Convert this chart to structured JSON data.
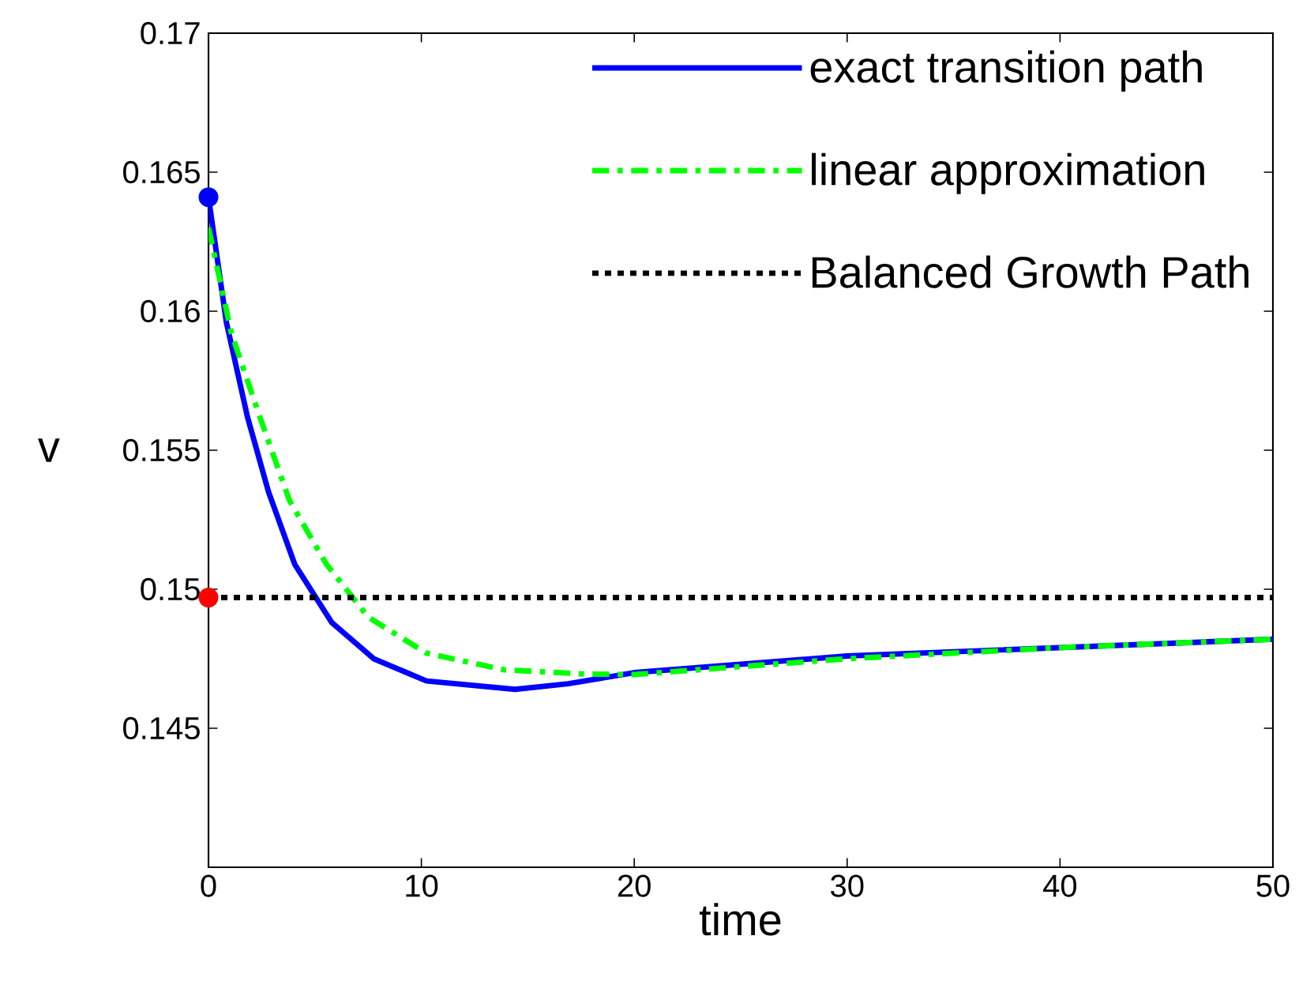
{
  "chart_data": {
    "type": "line",
    "xlabel": "time",
    "ylabel": "v",
    "xlim": [
      0,
      50
    ],
    "ylim": [
      0.14,
      0.17
    ],
    "xticks": [
      0,
      10,
      20,
      30,
      40,
      50
    ],
    "yticks": [
      0.145,
      0.15,
      0.155,
      0.16,
      0.165,
      0.17
    ],
    "grid": false,
    "legend": "top right",
    "series": [
      {
        "name": "exact transition path",
        "color": "#0000ff",
        "line_style": "solid",
        "x": [
          0,
          0.84,
          1.83,
          2.82,
          4.05,
          5.79,
          7.76,
          10.24,
          14.4,
          16.9,
          20,
          30,
          40,
          50
        ],
        "values": [
          0.1641,
          0.1596,
          0.1562,
          0.1535,
          0.1509,
          0.1488,
          0.1475,
          0.1467,
          0.1464,
          0.1466,
          0.147,
          0.1476,
          0.1479,
          0.1482
        ]
      },
      {
        "name": "linear approximation",
        "color": "#00ff00",
        "line_style": "dashdot",
        "x": [
          0,
          1.08,
          2.32,
          3.8,
          5.54,
          7.5,
          10.24,
          13.9,
          17.66,
          20,
          30,
          40,
          50
        ],
        "values": [
          0.163,
          0.1592,
          0.1564,
          0.1532,
          0.1509,
          0.149,
          0.1477,
          0.1471,
          0.14695,
          0.14693,
          0.1475,
          0.1479,
          0.1482
        ]
      },
      {
        "name": "Balanced Growth Path",
        "color": "#000000",
        "line_style": "dotted",
        "x": [
          0,
          50
        ],
        "values": [
          0.1497,
          0.1497
        ]
      },
      {
        "type": "scatter",
        "color": "#0000ff",
        "marker": "circle",
        "x": [
          0
        ],
        "values": [
          0.1641
        ]
      },
      {
        "type": "scatter",
        "color": "#ff0000",
        "marker": "circle",
        "x": [
          0
        ],
        "values": [
          0.1497
        ]
      }
    ]
  }
}
